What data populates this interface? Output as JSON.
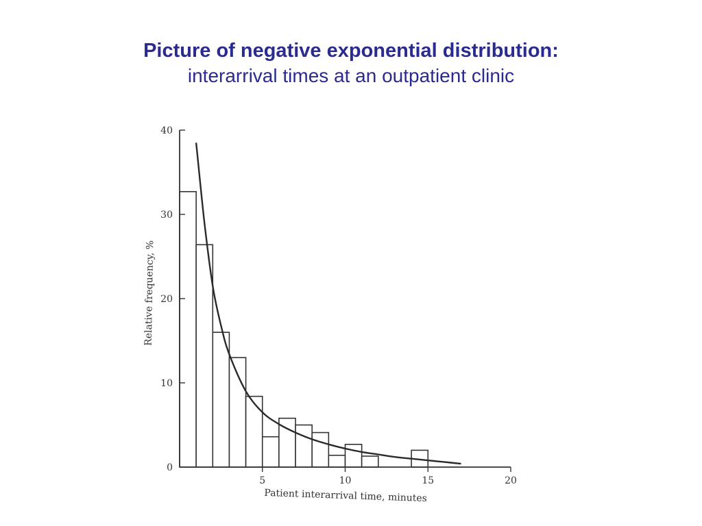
{
  "slide": {
    "title": "Picture of negative exponential distribution:",
    "subtitle": "interarrival times at an outpatient clinic"
  },
  "chart_data": {
    "type": "bar",
    "xlabel": "Patient interarrival time, minutes",
    "ylabel": "Relative frequency, %",
    "xlim": [
      0,
      20
    ],
    "ylim": [
      0,
      40
    ],
    "x_ticks": [
      "5",
      "10",
      "15",
      "20"
    ],
    "y_ticks": [
      "0",
      "10",
      "20",
      "30",
      "40"
    ],
    "bin_width": 1,
    "bins": [
      {
        "start": 0,
        "end": 1,
        "value": 32.7
      },
      {
        "start": 1,
        "end": 2,
        "value": 26.4
      },
      {
        "start": 2,
        "end": 3,
        "value": 16.0
      },
      {
        "start": 3,
        "end": 4,
        "value": 13.0
      },
      {
        "start": 4,
        "end": 5,
        "value": 8.4
      },
      {
        "start": 5,
        "end": 6,
        "value": 3.6
      },
      {
        "start": 6,
        "end": 7,
        "value": 5.8
      },
      {
        "start": 7,
        "end": 8,
        "value": 5.0
      },
      {
        "start": 8,
        "end": 9,
        "value": 4.1
      },
      {
        "start": 9,
        "end": 10,
        "value": 1.4
      },
      {
        "start": 10,
        "end": 11,
        "value": 2.7
      },
      {
        "start": 11,
        "end": 12,
        "value": 1.3
      },
      {
        "start": 12,
        "end": 13,
        "value": 0
      },
      {
        "start": 13,
        "end": 14,
        "value": 0
      },
      {
        "start": 14,
        "end": 15,
        "value": 2.0
      }
    ],
    "fitted_curve": {
      "type": "exponential",
      "x_start": 1.0,
      "x_end": 17.0,
      "x": [
        1.0,
        1.5,
        2.0,
        2.5,
        3.0,
        4.0,
        5.0,
        6.0,
        7.0,
        8.0,
        9.0,
        10.0,
        11.0,
        12.0,
        13.0,
        14.0,
        15.0,
        16.0,
        17.0
      ],
      "y": [
        38.5,
        29.0,
        21.5,
        16.8,
        13.4,
        9.0,
        6.5,
        5.1,
        4.1,
        3.3,
        2.7,
        2.2,
        1.8,
        1.5,
        1.2,
        1.0,
        0.8,
        0.6,
        0.4
      ]
    },
    "grid": false,
    "legend": "none",
    "colors": {
      "bars": "#ffffff",
      "stroke": "#333333",
      "curve": "#2a2a2a"
    }
  }
}
